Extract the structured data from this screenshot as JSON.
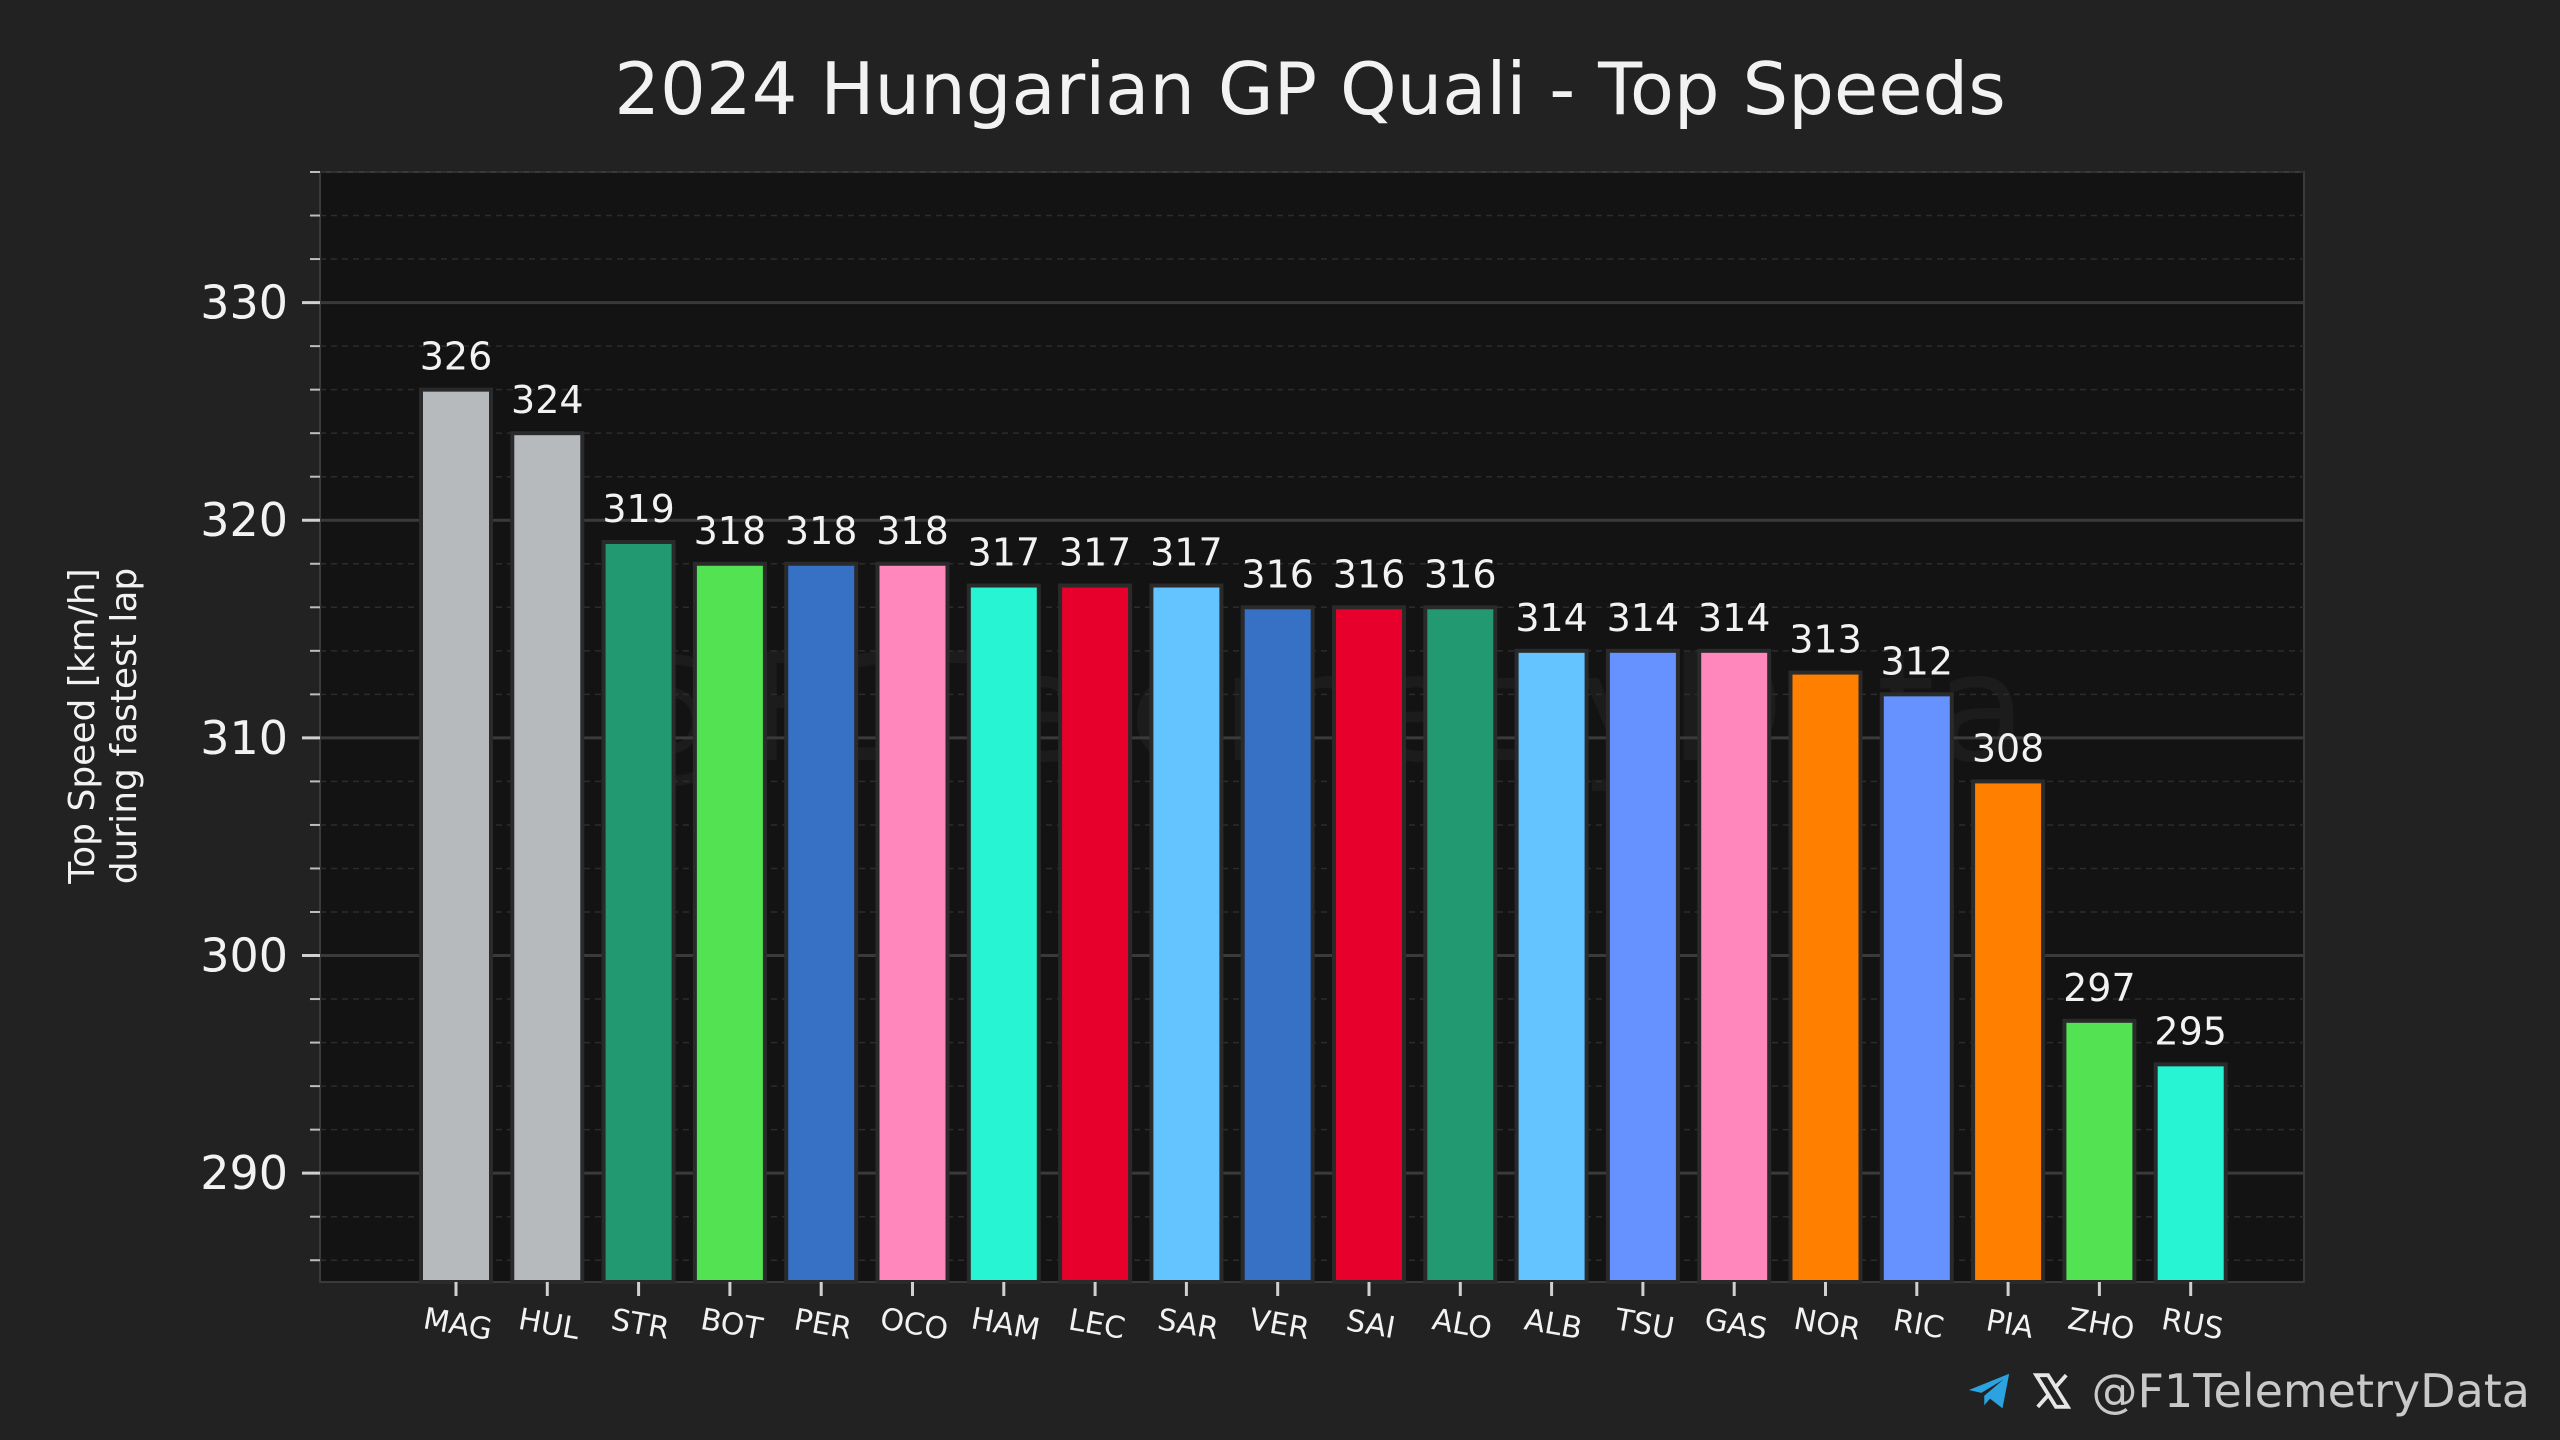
{
  "colors": {
    "background": "#222222",
    "plot_background": "#131313",
    "grid_major": "#3a3a3a",
    "grid_minor": "#2c2c2c",
    "text": "#f2f2f2",
    "bar_edge": "#2a2a2a"
  },
  "footer": {
    "handle": "@F1TelemetryData",
    "icons": [
      "telegram-icon",
      "x-logo-icon"
    ]
  },
  "watermark": "@F1TelemetryData",
  "chart_data": {
    "type": "bar",
    "title": "2024 Hungarian GP Quali - Top Speeds",
    "xlabel": "",
    "ylabel": [
      "Top Speed [km/h]",
      "during fastest lap"
    ],
    "ylim": [
      285,
      336
    ],
    "yticks": [
      290,
      300,
      310,
      320,
      330
    ],
    "grid": true,
    "categories": [
      "MAG",
      "HUL",
      "STR",
      "BOT",
      "PER",
      "OCO",
      "HAM",
      "LEC",
      "SAR",
      "VER",
      "SAI",
      "ALO",
      "ALB",
      "TSU",
      "GAS",
      "NOR",
      "RIC",
      "PIA",
      "ZHO",
      "RUS"
    ],
    "values": [
      326,
      324,
      319,
      318,
      318,
      318,
      317,
      317,
      317,
      316,
      316,
      316,
      314,
      314,
      314,
      313,
      312,
      308,
      297,
      295
    ],
    "labels": [
      "326",
      "324",
      "319",
      "318",
      "318",
      "318",
      "317",
      "317",
      "317",
      "316",
      "316",
      "316",
      "314",
      "314",
      "314",
      "313",
      "312",
      "308",
      "297",
      "295"
    ],
    "bar_colors": [
      "#b6babd",
      "#b6babd",
      "#229971",
      "#52e252",
      "#3671c6",
      "#ff87bc",
      "#27f4d2",
      "#e8002d",
      "#64c4ff",
      "#3671c6",
      "#e8002d",
      "#229971",
      "#64c4ff",
      "#6692ff",
      "#ff87bc",
      "#ff8000",
      "#6692ff",
      "#ff8000",
      "#52e252",
      "#27f4d2"
    ]
  }
}
